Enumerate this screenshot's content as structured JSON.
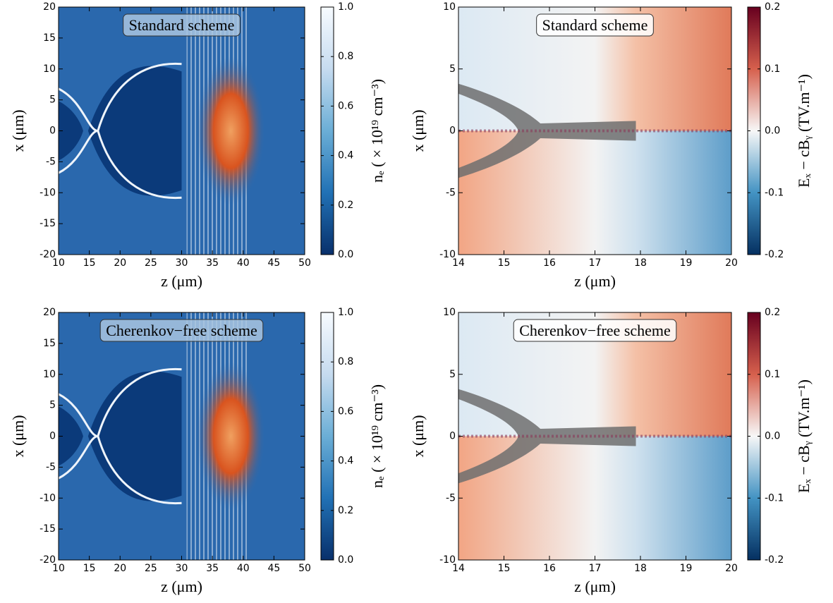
{
  "chart_data": [
    {
      "type": "heatmap",
      "title": "Standard scheme",
      "xlabel": "z (μm)",
      "ylabel": "x (μm)",
      "xlim": [
        10,
        50
      ],
      "ylim": [
        -20,
        20
      ],
      "xticks": [
        10,
        15,
        20,
        25,
        30,
        35,
        40,
        45,
        50
      ],
      "yticks": [
        -20,
        -15,
        -10,
        -5,
        0,
        5,
        10,
        15,
        20
      ],
      "colorbar": {
        "label": "nₑ ( × 10¹⁹  cm⁻³)",
        "lim": [
          0,
          1
        ],
        "ticks": [
          {
            "value": 0,
            "label": "0.0"
          },
          0.2,
          0.4,
          0.6,
          0.8,
          {
            "value": 1,
            "label": "1.0"
          }
        ],
        "colormap": [
          "#08306b",
          "#2171b5",
          "#6baed6",
          "#c6dbef",
          "#f7fbff"
        ]
      }
    },
    {
      "type": "heatmap",
      "title": "Standard scheme",
      "xlabel": "z (μm)",
      "ylabel": "x (μm)",
      "xlim": [
        14,
        20
      ],
      "ylim": [
        -10,
        10
      ],
      "xticks": [
        14,
        15,
        16,
        17,
        18,
        19,
        20
      ],
      "yticks": [
        -10,
        -5,
        0,
        5,
        10
      ],
      "colorbar": {
        "label": "Eₓ − cBᵧ   (TV.m⁻¹)",
        "lim": [
          -0.2,
          0.2
        ],
        "ticks": [
          -0.2,
          -0.1,
          {
            "value": 0,
            "label": "0.0"
          },
          0.1,
          0.2
        ],
        "colormap": [
          "#053061",
          "#4393c3",
          "#f7f7f7",
          "#d6604d",
          "#67001f"
        ]
      }
    },
    {
      "type": "heatmap",
      "title": "Cherenkov−free scheme",
      "xlabel": "z (μm)",
      "ylabel": "x (μm)",
      "xlim": [
        10,
        50
      ],
      "ylim": [
        -20,
        20
      ],
      "xticks": [
        10,
        15,
        20,
        25,
        30,
        35,
        40,
        45,
        50
      ],
      "yticks": [
        -20,
        -15,
        -10,
        -5,
        0,
        5,
        10,
        15,
        20
      ],
      "colorbar": {
        "label": "nₑ ( × 10¹⁹  cm⁻³)",
        "lim": [
          0,
          1
        ],
        "ticks": [
          {
            "value": 0,
            "label": "0.0"
          },
          0.2,
          0.4,
          0.6,
          0.8,
          {
            "value": 1,
            "label": "1.0"
          }
        ],
        "colormap": [
          "#08306b",
          "#2171b5",
          "#6baed6",
          "#c6dbef",
          "#f7fbff"
        ]
      }
    },
    {
      "type": "heatmap",
      "title": "Cherenkov−free scheme",
      "xlabel": "z (μm)",
      "ylabel": "x (μm)",
      "xlim": [
        14,
        20
      ],
      "ylim": [
        -10,
        10
      ],
      "xticks": [
        14,
        15,
        16,
        17,
        18,
        19,
        20
      ],
      "yticks": [
        -10,
        -5,
        0,
        5,
        10
      ],
      "colorbar": {
        "label": "Eₓ − cBᵧ   (TV.m⁻¹)",
        "lim": [
          -0.2,
          0.2
        ],
        "ticks": [
          -0.2,
          -0.1,
          {
            "value": 0,
            "label": "0.0"
          },
          0.1,
          0.2
        ],
        "colormap": [
          "#053061",
          "#4393c3",
          "#f7f7f7",
          "#d6604d",
          "#67001f"
        ]
      }
    }
  ]
}
